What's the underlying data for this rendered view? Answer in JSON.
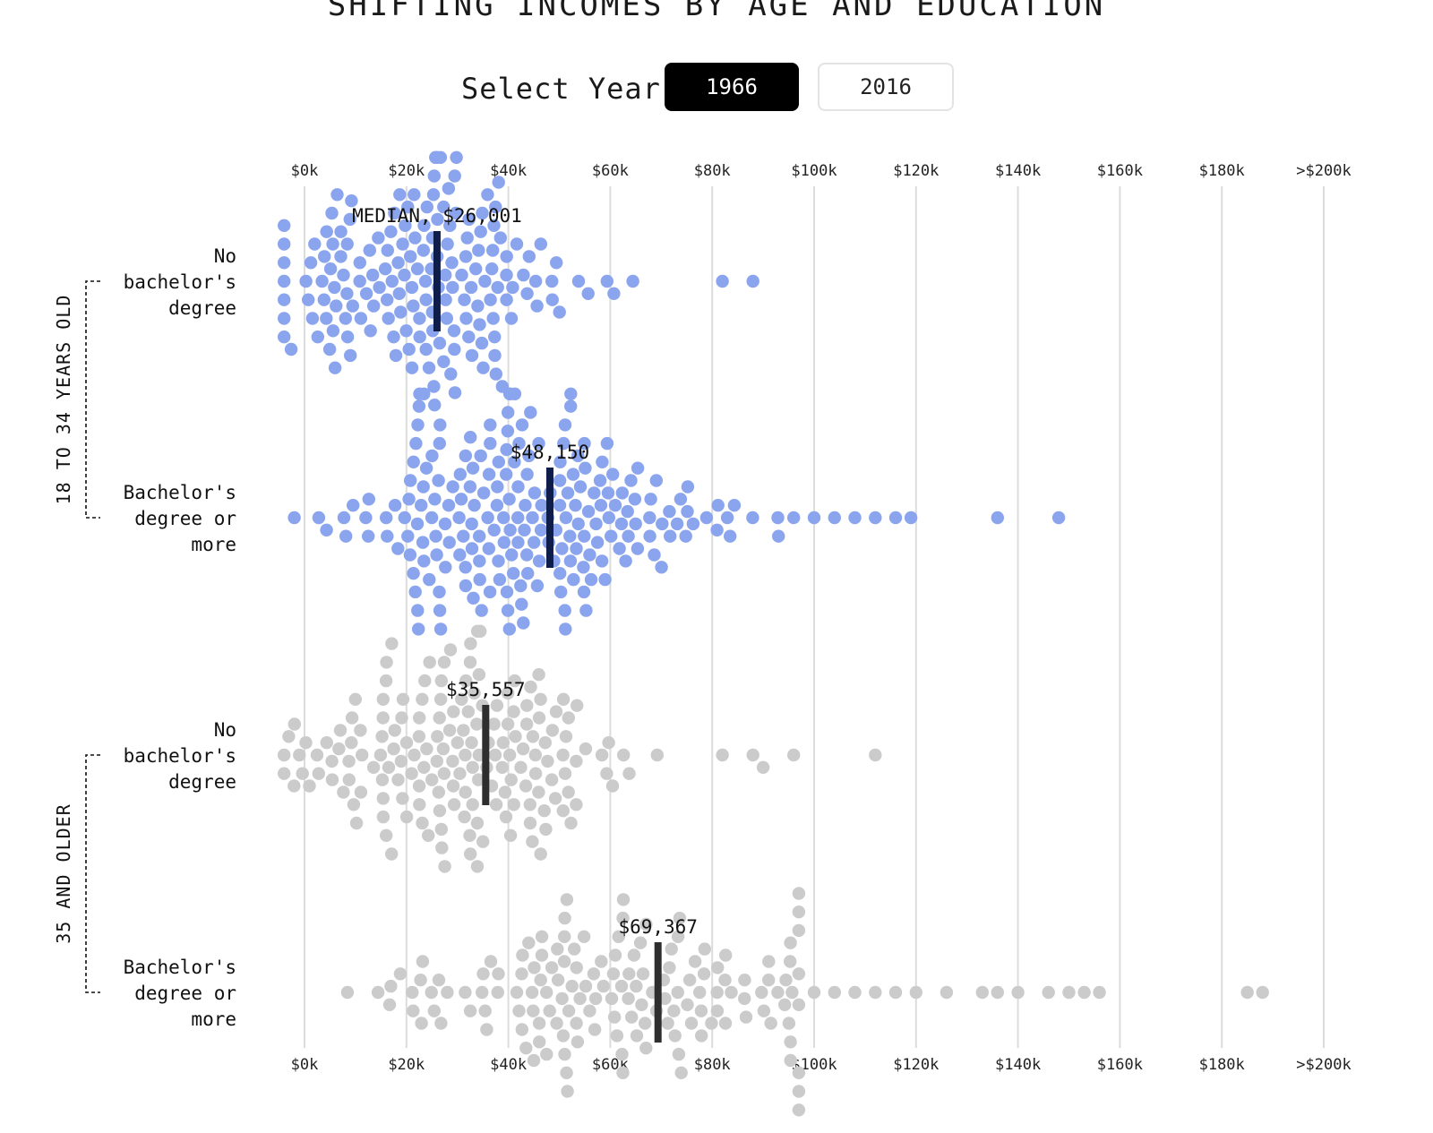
{
  "title": "SHIFTING INCOMES BY AGE AND EDUCATION",
  "controls": {
    "label": "Select Year",
    "years": [
      "1966",
      "2016"
    ],
    "selected": "1966"
  },
  "colors": {
    "young_dot": "#8aa4ee",
    "young_median": "#0f1d4a",
    "older_dot": "#cbcbcb",
    "older_median": "#2e2e2e",
    "grid": "#dcdcdc"
  },
  "chart_data": {
    "type": "beeswarm",
    "x_ticks": [
      "$0k",
      "$20k",
      "$40k",
      "$60k",
      "$80k",
      "$100k",
      "$120k",
      "$140k",
      "$160k",
      "$180k",
      ">$200k"
    ],
    "x_range": [
      0,
      200000
    ],
    "grid": true,
    "groups": [
      {
        "label": "18 TO 34 YEARS OLD",
        "color_key": "young"
      },
      {
        "label": "35 AND OLDER",
        "color_key": "older"
      }
    ],
    "rows": [
      {
        "group": 0,
        "label_lines": [
          "No",
          "bachelor's",
          "degree"
        ],
        "median": 26001,
        "median_label": "MEDIAN, $26,001",
        "dot_count": 170,
        "outliers": [
          82000,
          88000
        ],
        "distribution": {
          "center": 23000,
          "spread": 15000,
          "min": -4000,
          "max": 75000
        }
      },
      {
        "group": 0,
        "label_lines": [
          "Bachelor's",
          "degree or",
          "more"
        ],
        "median": 48150,
        "median_label": "$48,150",
        "dot_count": 210,
        "outliers": [
          96000,
          100000,
          104000,
          108000,
          112000,
          116000,
          119000,
          136000,
          148000
        ],
        "distribution": {
          "center": 44000,
          "spread": 19000,
          "min": -2000,
          "max": 93000
        }
      },
      {
        "group": 1,
        "label_lines": [
          "No",
          "bachelor's",
          "degree"
        ],
        "median": 35557,
        "median_label": "$35,557",
        "dot_count": 175,
        "outliers": [
          82000,
          88000,
          90000,
          96000,
          112000
        ],
        "distribution": {
          "center": 28000,
          "spread": 17000,
          "min": -4000,
          "max": 78000
        }
      },
      {
        "group": 1,
        "label_lines": [
          "Bachelor's",
          "degree or",
          "more"
        ],
        "median": 69367,
        "median_label": "$69,367",
        "dot_count": 150,
        "outliers": [
          100000,
          104000,
          108000,
          112000,
          116000,
          120000,
          126000,
          133000,
          136000,
          140000,
          146000,
          150000,
          153000,
          156000,
          185000,
          188000
        ],
        "distribution": {
          "center": 62000,
          "spread": 21000,
          "min": 0,
          "max": 97000
        }
      }
    ]
  }
}
